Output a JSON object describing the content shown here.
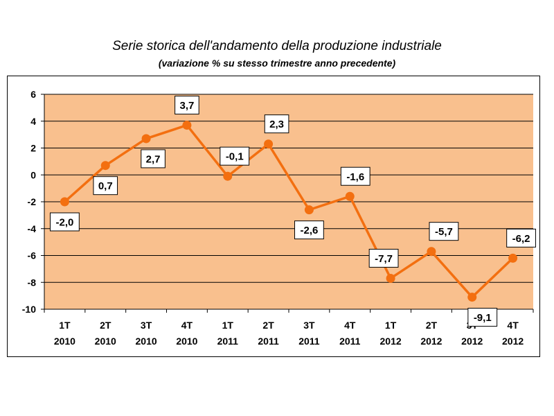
{
  "title": "Serie storica dell'andamento della produzione industriale",
  "subtitle": "(variazione % su stesso trimestre anno precedente)",
  "colors": {
    "plot_bg": "#F9C08E",
    "line": "#F36F10",
    "grid": "#000000"
  },
  "chart_data": {
    "type": "line",
    "title": "Serie storica dell'andamento della produzione industriale",
    "subtitle": "(variazione % su stesso trimestre anno precedente)",
    "categories": [
      [
        "1T",
        "2010"
      ],
      [
        "2T",
        "2010"
      ],
      [
        "3T",
        "2010"
      ],
      [
        "4T",
        "2010"
      ],
      [
        "1T",
        "2011"
      ],
      [
        "2T",
        "2011"
      ],
      [
        "3T",
        "2011"
      ],
      [
        "4T",
        "2011"
      ],
      [
        "1T",
        "2012"
      ],
      [
        "2T",
        "2012"
      ],
      [
        "3T",
        "2012"
      ],
      [
        "4T",
        "2012"
      ]
    ],
    "values": [
      -2.0,
      0.7,
      2.7,
      3.7,
      -0.1,
      2.3,
      -2.6,
      -1.6,
      -7.7,
      -5.7,
      -9.1,
      -6.2
    ],
    "data_labels": [
      "-2,0",
      "0,7",
      "2,7",
      "3,7",
      "-0,1",
      "2,3",
      "-2,6",
      "-1,6",
      "-7,7",
      "-5,7",
      "-9,1",
      "-6,2"
    ],
    "y_ticks": [
      6,
      4,
      2,
      0,
      -2,
      -4,
      -6,
      -8,
      -10
    ],
    "ylim": [
      -10,
      6
    ],
    "grid": true,
    "legend": false
  }
}
